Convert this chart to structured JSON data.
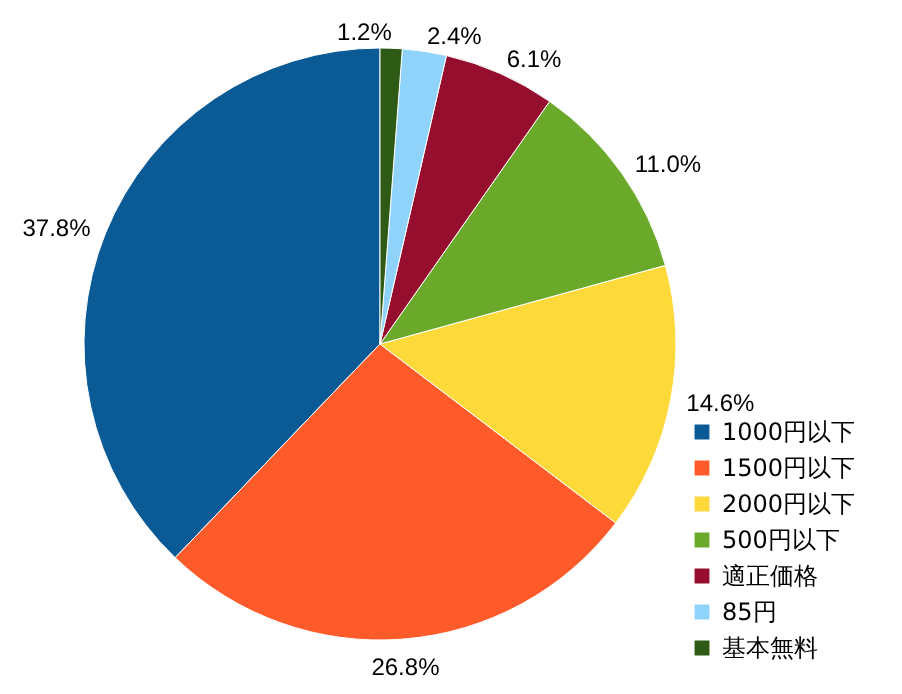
{
  "chart_data": {
    "type": "pie",
    "categories": [
      "1000円以下",
      "1500円以下",
      "2000円以下",
      "500円以下",
      "適正価格",
      "85円",
      "基本無料"
    ],
    "values": [
      37.8,
      26.8,
      14.6,
      11.0,
      6.1,
      2.4,
      1.2
    ],
    "colors": [
      "#0a5a96",
      "#fe5a2a",
      "#fed93a",
      "#6aa92a",
      "#960e2e",
      "#8fd2fa",
      "#2d5a14"
    ],
    "value_labels": [
      "37.8%",
      "26.8%",
      "14.6%",
      "11.0%",
      "6.1%",
      "2.4%",
      "1.2%"
    ],
    "legend": "bottom right"
  }
}
